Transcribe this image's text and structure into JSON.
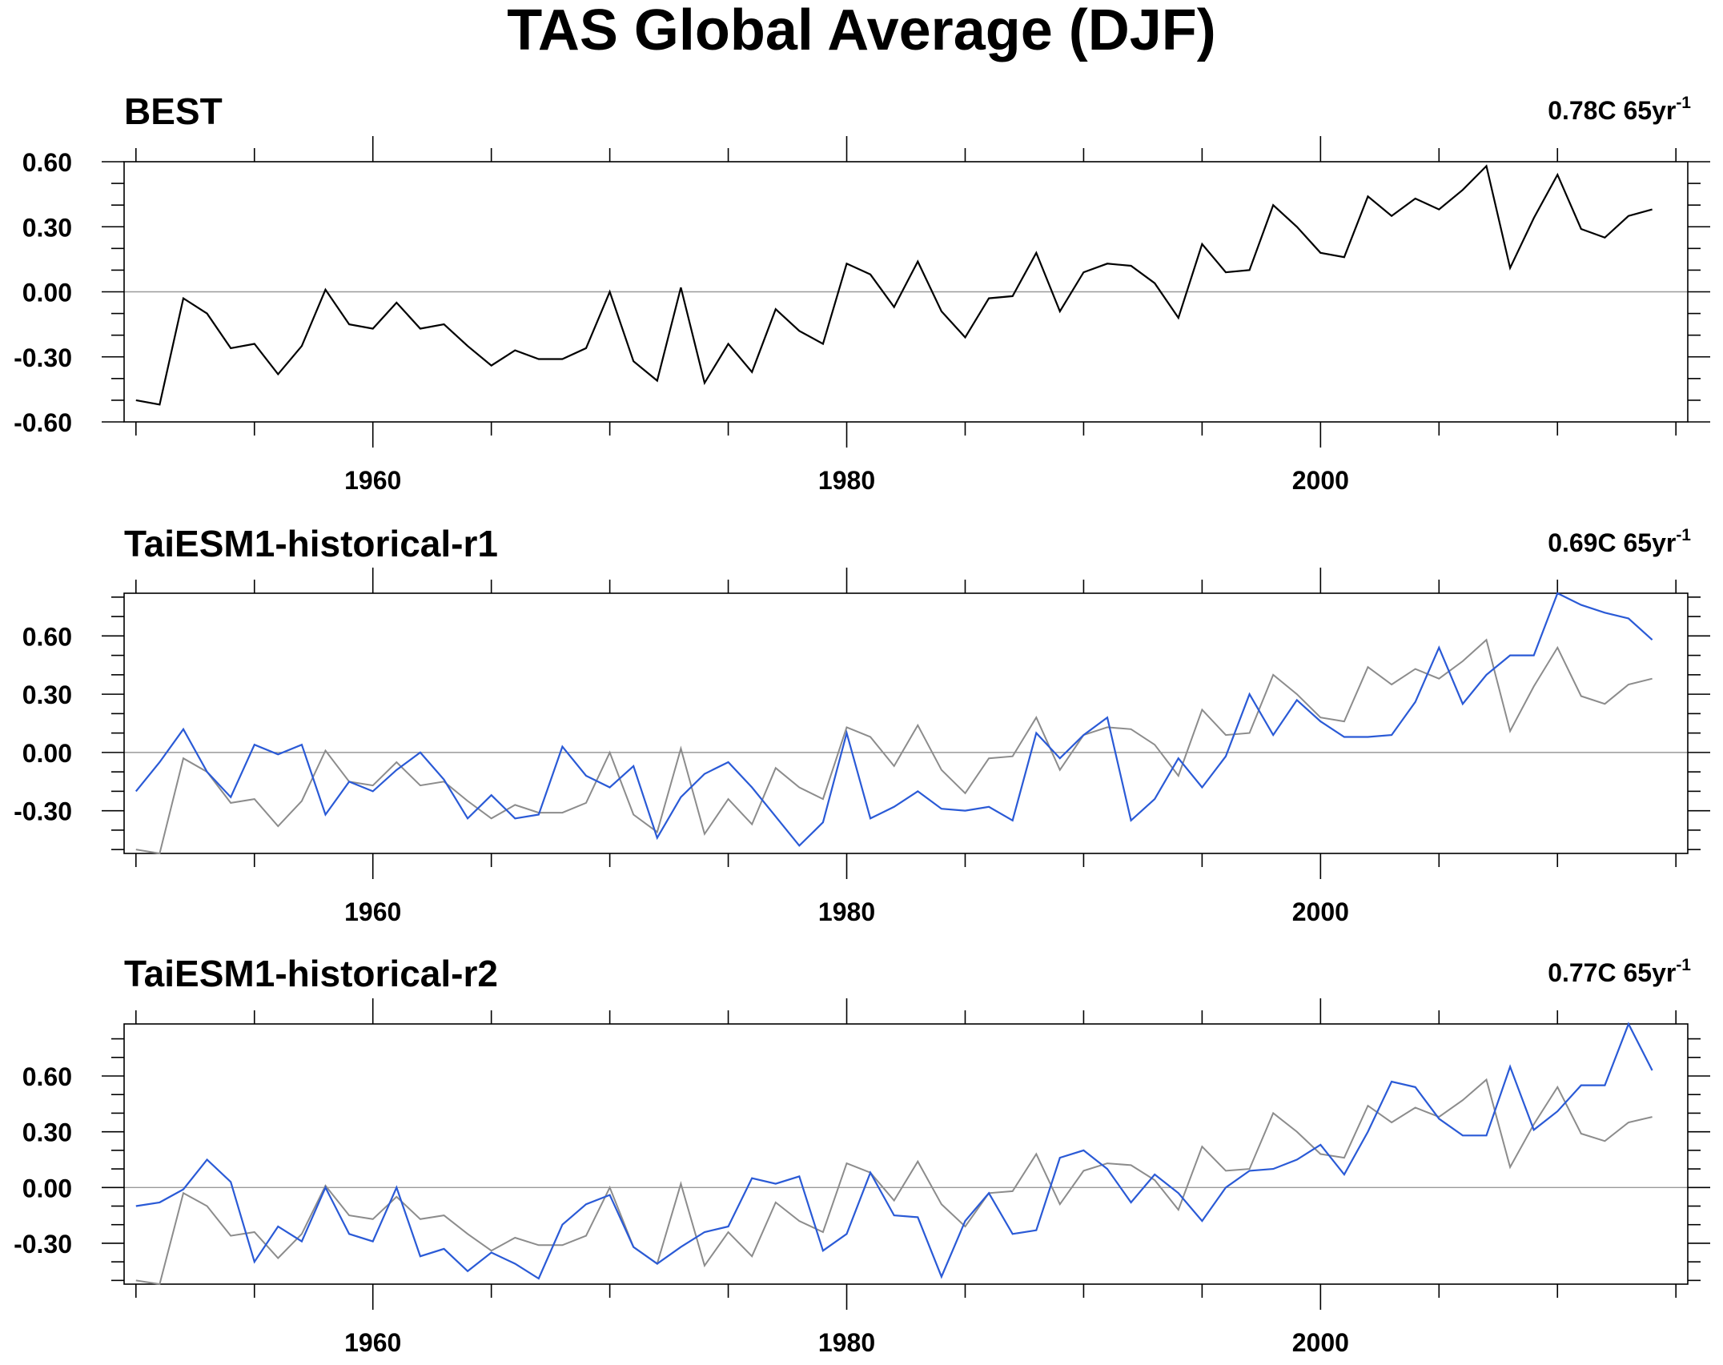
{
  "title": "TAS Global Average (DJF)",
  "colors": {
    "reference": "#000000",
    "reference_overlay": "#8c8c8c",
    "model": "#2a5ad6",
    "zero_line": "#9a9a9a"
  },
  "chart_data": [
    {
      "type": "line",
      "title": "BEST",
      "trend_value": "0.78C 65yr",
      "trend_exponent": "-1",
      "xlim": [
        1949.5,
        2015.5
      ],
      "xticks": [
        1960,
        1980,
        2000
      ],
      "xtick_labels": [
        "1960",
        "1980",
        "2000"
      ],
      "ylim": [
        -0.6,
        0.6
      ],
      "yticks": [
        -0.6,
        -0.3,
        0.0,
        0.3,
        0.6
      ],
      "ytick_labels": [
        "-0.60",
        "-0.30",
        "0.00",
        "0.30",
        "0.60"
      ],
      "series": [
        {
          "role": "reference",
          "x_start": 1950,
          "values": [
            -0.5,
            -0.52,
            -0.03,
            -0.1,
            -0.26,
            -0.24,
            -0.38,
            -0.25,
            0.01,
            -0.15,
            -0.17,
            -0.05,
            -0.17,
            -0.15,
            -0.25,
            -0.34,
            -0.27,
            -0.31,
            -0.31,
            -0.26,
            0.0,
            -0.32,
            -0.41,
            0.02,
            -0.42,
            -0.24,
            -0.37,
            -0.08,
            -0.18,
            -0.24,
            0.13,
            0.08,
            -0.07,
            0.14,
            -0.09,
            -0.21,
            -0.03,
            -0.02,
            0.18,
            -0.09,
            0.09,
            0.13,
            0.12,
            0.04,
            -0.12,
            0.22,
            0.09,
            0.1,
            0.4,
            0.3,
            0.18,
            0.16,
            0.44,
            0.35,
            0.43,
            0.38,
            0.47,
            0.58,
            0.11,
            0.34,
            0.54,
            0.29,
            0.25,
            0.35,
            0.38
          ]
        }
      ]
    },
    {
      "type": "line",
      "title": "TaiESM1-historical-r1",
      "trend_value": "0.69C 65yr",
      "trend_exponent": "-1",
      "xlim": [
        1949.5,
        2015.5
      ],
      "xticks": [
        1960,
        1980,
        2000
      ],
      "xtick_labels": [
        "1960",
        "1980",
        "2000"
      ],
      "ylim": [
        -0.52,
        0.82
      ],
      "yticks": [
        -0.3,
        0.0,
        0.3,
        0.6
      ],
      "ytick_labels": [
        "-0.30",
        "0.00",
        "0.30",
        "0.60"
      ],
      "series": [
        {
          "role": "reference",
          "x_start": 1950,
          "values": [
            -0.5,
            -0.52,
            -0.03,
            -0.1,
            -0.26,
            -0.24,
            -0.38,
            -0.25,
            0.01,
            -0.15,
            -0.17,
            -0.05,
            -0.17,
            -0.15,
            -0.25,
            -0.34,
            -0.27,
            -0.31,
            -0.31,
            -0.26,
            0.0,
            -0.32,
            -0.41,
            0.02,
            -0.42,
            -0.24,
            -0.37,
            -0.08,
            -0.18,
            -0.24,
            0.13,
            0.08,
            -0.07,
            0.14,
            -0.09,
            -0.21,
            -0.03,
            -0.02,
            0.18,
            -0.09,
            0.09,
            0.13,
            0.12,
            0.04,
            -0.12,
            0.22,
            0.09,
            0.1,
            0.4,
            0.3,
            0.18,
            0.16,
            0.44,
            0.35,
            0.43,
            0.38,
            0.47,
            0.58,
            0.11,
            0.34,
            0.54,
            0.29,
            0.25,
            0.35,
            0.38
          ]
        },
        {
          "role": "model",
          "x_start": 1950,
          "values": [
            -0.2,
            -0.05,
            0.12,
            -0.1,
            -0.23,
            0.04,
            -0.01,
            0.04,
            -0.32,
            -0.15,
            -0.2,
            -0.09,
            0.0,
            -0.14,
            -0.34,
            -0.22,
            -0.34,
            -0.32,
            0.03,
            -0.12,
            -0.18,
            -0.07,
            -0.44,
            -0.23,
            -0.11,
            -0.05,
            -0.18,
            -0.33,
            -0.48,
            -0.36,
            0.1,
            -0.34,
            -0.28,
            -0.2,
            -0.29,
            -0.3,
            -0.28,
            -0.35,
            0.1,
            -0.03,
            0.09,
            0.18,
            -0.35,
            -0.24,
            -0.03,
            -0.18,
            -0.02,
            0.3,
            0.09,
            0.27,
            0.16,
            0.08,
            0.08,
            0.09,
            0.26,
            0.54,
            0.25,
            0.4,
            0.5,
            0.5,
            0.82,
            0.76,
            0.72,
            0.69,
            0.58
          ]
        }
      ]
    },
    {
      "type": "line",
      "title": "TaiESM1-historical-r2",
      "trend_value": "0.77C 65yr",
      "trend_exponent": "-1",
      "xlim": [
        1949.5,
        2015.5
      ],
      "xticks": [
        1960,
        1980,
        2000
      ],
      "xtick_labels": [
        "1960",
        "1980",
        "2000"
      ],
      "ylim": [
        -0.52,
        0.88
      ],
      "yticks": [
        -0.3,
        0.0,
        0.3,
        0.6
      ],
      "ytick_labels": [
        "-0.30",
        "0.00",
        "0.30",
        "0.60"
      ],
      "series": [
        {
          "role": "reference",
          "x_start": 1950,
          "values": [
            -0.5,
            -0.52,
            -0.03,
            -0.1,
            -0.26,
            -0.24,
            -0.38,
            -0.25,
            0.01,
            -0.15,
            -0.17,
            -0.05,
            -0.17,
            -0.15,
            -0.25,
            -0.34,
            -0.27,
            -0.31,
            -0.31,
            -0.26,
            0.0,
            -0.32,
            -0.41,
            0.02,
            -0.42,
            -0.24,
            -0.37,
            -0.08,
            -0.18,
            -0.24,
            0.13,
            0.08,
            -0.07,
            0.14,
            -0.09,
            -0.21,
            -0.03,
            -0.02,
            0.18,
            -0.09,
            0.09,
            0.13,
            0.12,
            0.04,
            -0.12,
            0.22,
            0.09,
            0.1,
            0.4,
            0.3,
            0.18,
            0.16,
            0.44,
            0.35,
            0.43,
            0.38,
            0.47,
            0.58,
            0.11,
            0.34,
            0.54,
            0.29,
            0.25,
            0.35,
            0.38
          ]
        },
        {
          "role": "model",
          "x_start": 1950,
          "values": [
            -0.1,
            -0.08,
            -0.01,
            0.15,
            0.03,
            -0.4,
            -0.21,
            -0.29,
            0.0,
            -0.25,
            -0.29,
            0.0,
            -0.37,
            -0.33,
            -0.45,
            -0.35,
            -0.41,
            -0.49,
            -0.2,
            -0.09,
            -0.04,
            -0.32,
            -0.41,
            -0.32,
            -0.24,
            -0.21,
            0.05,
            0.02,
            0.06,
            -0.34,
            -0.25,
            0.08,
            -0.15,
            -0.16,
            -0.48,
            -0.18,
            -0.03,
            -0.25,
            -0.23,
            0.16,
            0.2,
            0.1,
            -0.08,
            0.07,
            -0.03,
            -0.18,
            0.0,
            0.09,
            0.1,
            0.15,
            0.23,
            0.07,
            0.3,
            0.57,
            0.54,
            0.37,
            0.28,
            0.28,
            0.65,
            0.31,
            0.41,
            0.55,
            0.55,
            0.88,
            0.63
          ]
        }
      ]
    }
  ]
}
